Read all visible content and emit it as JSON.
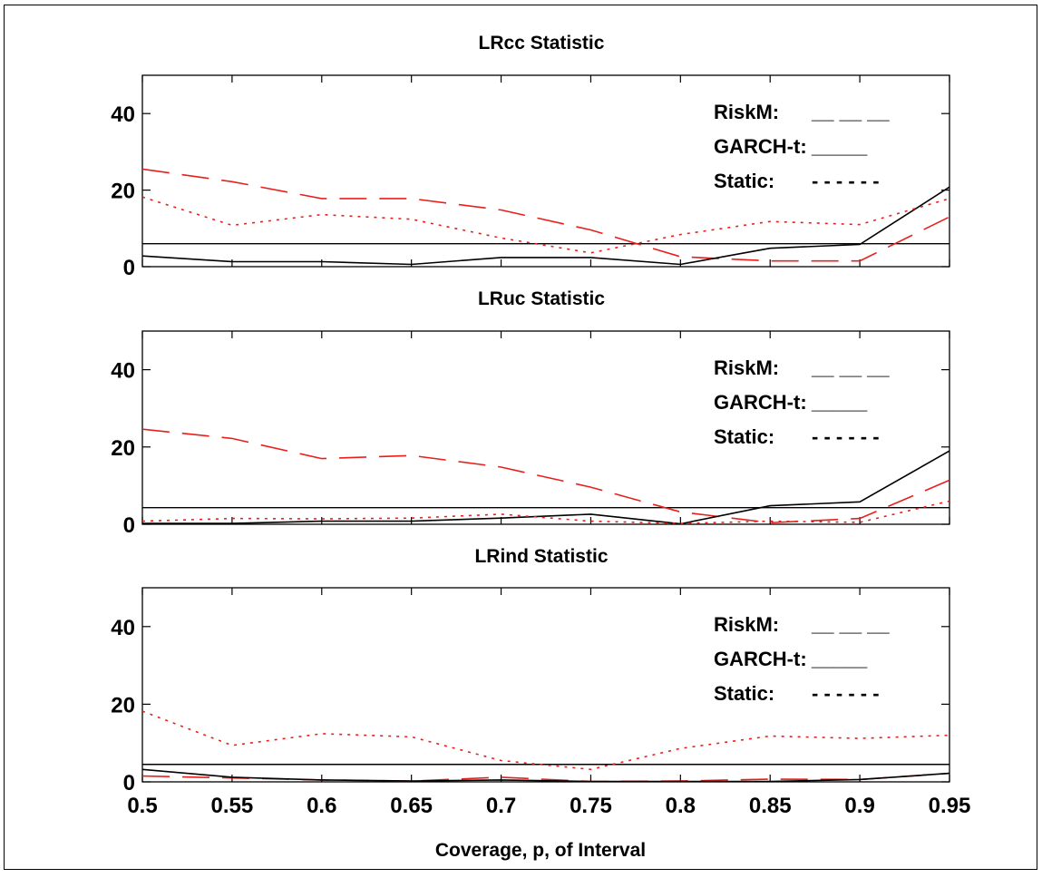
{
  "chart_data": [
    {
      "type": "line",
      "title": "LRcc Statistic",
      "xlabel": "",
      "ylabel": "",
      "xlim": [
        0.5,
        0.95
      ],
      "ylim": [
        0,
        50
      ],
      "yticks": [
        "0",
        "20",
        "40"
      ],
      "xticks": [],
      "grid": false,
      "legend_position": "top-right",
      "x": [
        0.5,
        0.55,
        0.6,
        0.65,
        0.7,
        0.75,
        0.8,
        0.85,
        0.9,
        0.95
      ],
      "series": [
        {
          "name": "RiskM:",
          "legend_glyph": "__ __ __",
          "style": "dashed",
          "color": "#e8201c",
          "values": [
            25.5,
            22.2,
            17.8,
            17.8,
            14.8,
            9.6,
            2.6,
            1.5,
            1.5,
            13.0
          ]
        },
        {
          "name": "GARCH-t:",
          "legend_glyph": "_____",
          "style": "solid",
          "color": "#000000",
          "values": [
            2.8,
            1.3,
            1.3,
            0.6,
            2.4,
            2.4,
            0.6,
            4.8,
            5.8,
            20.8
          ]
        },
        {
          "name": "Static:",
          "legend_glyph": "- - - - - -",
          "style": "dotted",
          "color": "#e8201c",
          "values": [
            18.2,
            10.8,
            13.6,
            12.4,
            7.5,
            3.6,
            8.4,
            11.8,
            11.0,
            17.8
          ]
        }
      ],
      "reference_line": 6.0
    },
    {
      "type": "line",
      "title": "LRuc Statistic",
      "xlabel": "",
      "ylabel": "",
      "xlim": [
        0.5,
        0.95
      ],
      "ylim": [
        0,
        50
      ],
      "yticks": [
        "0",
        "20",
        "40"
      ],
      "xticks": [],
      "grid": false,
      "legend_position": "top-right",
      "x": [
        0.5,
        0.55,
        0.6,
        0.65,
        0.7,
        0.75,
        0.8,
        0.85,
        0.9,
        0.95
      ],
      "series": [
        {
          "name": "RiskM:",
          "legend_glyph": "__ __ __",
          "style": "dashed",
          "color": "#e8201c",
          "values": [
            24.6,
            22.2,
            17.0,
            17.8,
            14.8,
            9.6,
            3.2,
            0.4,
            1.5,
            11.4
          ]
        },
        {
          "name": "GARCH-t:",
          "legend_glyph": "_____",
          "style": "solid",
          "color": "#000000",
          "values": [
            0.2,
            0.2,
            0.8,
            0.8,
            1.6,
            2.6,
            0.1,
            4.8,
            5.8,
            19.0
          ]
        },
        {
          "name": "Static:",
          "legend_glyph": "- - - - - -",
          "style": "dotted",
          "color": "#e8201c",
          "values": [
            0.8,
            1.5,
            1.4,
            1.6,
            2.6,
            0.8,
            0.2,
            0.8,
            0.5,
            6.0
          ]
        }
      ],
      "reference_line": 4.3
    },
    {
      "type": "line",
      "title": "LRind Statistic",
      "xlabel": "Coverage, p, of Interval",
      "ylabel": "",
      "xlim": [
        0.5,
        0.95
      ],
      "ylim": [
        0,
        50
      ],
      "yticks": [
        "0",
        "20",
        "40"
      ],
      "xticks": [
        "0.5",
        "0.55",
        "0.6",
        "0.65",
        "0.7",
        "0.75",
        "0.8",
        "0.85",
        "0.9",
        "0.95"
      ],
      "grid": false,
      "legend_position": "top-right",
      "x": [
        0.5,
        0.55,
        0.6,
        0.65,
        0.7,
        0.75,
        0.8,
        0.85,
        0.9,
        0.95
      ],
      "series": [
        {
          "name": "RiskM:",
          "legend_glyph": "__ __ __",
          "style": "dashed",
          "color": "#e8201c",
          "values": [
            1.5,
            1.0,
            0.5,
            0.2,
            1.2,
            0.1,
            0.2,
            0.7,
            0.6,
            2.2
          ]
        },
        {
          "name": "GARCH-t:",
          "legend_glyph": "_____",
          "style": "solid",
          "color": "#000000",
          "values": [
            3.2,
            1.2,
            0.5,
            0.2,
            0.5,
            0.1,
            0.1,
            0.1,
            0.6,
            2.2
          ]
        },
        {
          "name": "Static:",
          "legend_glyph": "- - - - - -",
          "style": "dotted",
          "color": "#e8201c",
          "values": [
            18.2,
            9.4,
            12.4,
            11.6,
            5.5,
            3.2,
            8.6,
            11.8,
            11.2,
            12.0
          ]
        }
      ],
      "reference_line": 4.5
    }
  ]
}
